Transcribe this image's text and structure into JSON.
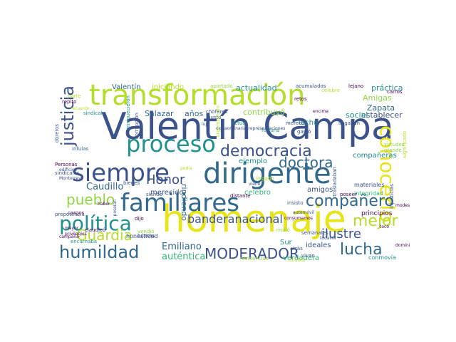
{
  "palette": {
    "dark_purple": "#440154",
    "indigo": "#3b528b",
    "blue_slate": "#31688e",
    "teal": "#21918c",
    "green_teal": "#35b779",
    "lime": "#90d743",
    "yellow_green": "#b5de2b",
    "yellow": "#e8e41a"
  },
  "words": [
    {
      "text": "Valentín Campa",
      "color": "#3b528b"
    },
    {
      "text": "homenaje",
      "color": "#e8e41a"
    },
    {
      "text": "transformación",
      "color": "#b5de2b"
    },
    {
      "text": "siempre",
      "color": "#3b528b"
    },
    {
      "text": "dirigente",
      "color": "#31688e"
    },
    {
      "text": "familiares",
      "color": "#31688e"
    },
    {
      "text": "proceso",
      "color": "#21918c"
    },
    {
      "text": "democracia",
      "color": "#3b528b"
    },
    {
      "text": "política",
      "color": "#21918c"
    },
    {
      "text": "conocerlo",
      "color": "#e8e41a"
    },
    {
      "text": "compañero",
      "color": "#31688e"
    },
    {
      "text": "justicia",
      "color": "#3b528b"
    },
    {
      "text": "humildad",
      "color": "#31688e"
    },
    {
      "text": "lucha",
      "color": "#31688e"
    },
    {
      "text": "MODERADOR",
      "color": "#3b528b"
    },
    {
      "text": "Guardia",
      "color": "#b5de2b"
    },
    {
      "text": "pueblo",
      "color": "#90d743"
    },
    {
      "text": "mejor",
      "color": "#b5de2b"
    },
    {
      "text": "doctora",
      "color": "#31688e"
    },
    {
      "text": "Honor",
      "color": "#3b528b"
    },
    {
      "text": "banderanacional",
      "color": "#3b528b"
    },
    {
      "text": "ilustre",
      "color": "#3b528b"
    },
    {
      "text": "Caudillo",
      "color": "#31688e"
    },
    {
      "text": "Emiliano",
      "color": "#31688e"
    },
    {
      "text": "auténtica",
      "color": "#35b779"
    },
    {
      "text": "Valentín",
      "color": "#31688e"
    },
    {
      "text": "iniciando",
      "color": "#b5de2b"
    },
    {
      "text": "actualidad",
      "color": "#21918c"
    },
    {
      "text": "práctica",
      "color": "#21918c"
    },
    {
      "text": "Amigas",
      "color": "#90d743"
    },
    {
      "text": "Zapata",
      "color": "#31688e"
    },
    {
      "text": "establecer",
      "color": "#3b528b"
    },
    {
      "text": "social",
      "color": "#21918c"
    },
    {
      "text": "Salazar",
      "color": "#31688e"
    },
    {
      "text": "años",
      "color": "#31688e"
    },
    {
      "text": "contribuyó",
      "color": "#90d743"
    },
    {
      "text": "lucho",
      "color": "#21918c"
    },
    {
      "text": "compañeras",
      "color": "#21918c"
    },
    {
      "text": "ejemplo",
      "color": "#21918c"
    },
    {
      "text": "rindiendo",
      "color": "#31688e"
    },
    {
      "text": "merecido",
      "color": "#3b528b"
    },
    {
      "text": "amigos",
      "color": "#3b528b"
    },
    {
      "text": "celebro",
      "color": "#35b779"
    },
    {
      "text": "verdadera",
      "color": "#35b779"
    },
    {
      "text": "ideales",
      "color": "#3b528b"
    },
    {
      "text": "Sur",
      "color": "#21918c"
    },
    {
      "text": "honestidad",
      "color": "#3b528b"
    },
    {
      "text": "principios",
      "color": "#440154"
    },
    {
      "text": "materiales",
      "color": "#3b528b"
    },
    {
      "text": "integridad",
      "color": "#35b779"
    },
    {
      "text": "conmovía",
      "color": "#21918c"
    },
    {
      "text": "obreros",
      "color": "#3b528b"
    },
    {
      "text": "infulas",
      "color": "#31688e"
    },
    {
      "text": "bienes",
      "color": "#3b528b"
    },
    {
      "text": "cargos",
      "color": "#440154"
    },
    {
      "text": "claudicó",
      "color": "#440154"
    },
    {
      "text": "encarnaba",
      "color": "#21918c"
    },
    {
      "text": "vendió",
      "color": "#90d743"
    },
    {
      "text": "rindió",
      "color": "#90d743"
    },
    {
      "text": "distante",
      "color": "#440154"
    },
    {
      "text": "siendo",
      "color": "#3b528b"
    },
    {
      "text": "insisto",
      "color": "#3b528b"
    },
    {
      "text": "atrás",
      "color": "#3b528b"
    },
    {
      "text": "vivan",
      "color": "#3b528b"
    },
    {
      "text": "acumulados",
      "color": "#3b528b"
    },
    {
      "text": "retos",
      "color": "#440154"
    },
    {
      "text": "lejano",
      "color": "#440154"
    },
    {
      "text": "apartado",
      "color": "#90d743"
    },
    {
      "text": "celebre",
      "color": "#b5de2b"
    },
    {
      "text": "carros",
      "color": "#440154"
    },
    {
      "text": "choferes",
      "color": "#3b528b"
    },
    {
      "text": "gusto",
      "color": "#3b528b"
    },
    {
      "text": "actuó",
      "color": "#21918c"
    },
    {
      "text": "fortuna",
      "color": "#21918c"
    },
    {
      "text": "gastó",
      "color": "#3b528b"
    },
    {
      "text": "merece",
      "color": "#3b528b"
    },
    {
      "text": "llegaban",
      "color": "#3b528b"
    },
    {
      "text": "extraordinariasrepresentaciones",
      "color": "#3b528b"
    },
    {
      "text": "organización",
      "color": "#b5de2b"
    },
    {
      "text": "corrupción",
      "color": "#3b528b"
    },
    {
      "text": "enriquecieron",
      "color": "#21918c"
    },
    {
      "text": "sindical",
      "color": "#21918c"
    },
    {
      "text": "Personas",
      "color": "#440154"
    },
    {
      "text": "sindicales",
      "color": "#3b528b"
    },
    {
      "text": "prepotencia",
      "color": "#3b528b"
    },
    {
      "text": "mayor",
      "color": "#440154"
    },
    {
      "text": "privilegios",
      "color": "#440154"
    },
    {
      "text": "campaña",
      "color": "#440154"
    },
    {
      "text": "semanales",
      "color": "#3b528b"
    },
    {
      "text": "consumamos",
      "color": "#440154"
    },
    {
      "text": "automóvil",
      "color": "#3b528b"
    },
    {
      "text": "acabar",
      "color": "#b5de2b"
    },
    {
      "text": "residencias",
      "color": "#90d743"
    },
    {
      "text": "todavía",
      "color": "#3b528b"
    },
    {
      "text": "tocó",
      "color": "#440154"
    },
    {
      "text": "injusticias",
      "color": "#3b528b"
    },
    {
      "text": "virtudes",
      "color": "#90d743"
    },
    {
      "text": "grande",
      "color": "#90d743"
    },
    {
      "text": "significado",
      "color": "#b5de2b"
    },
    {
      "text": "encima",
      "color": "#440154"
    },
    {
      "text": "parte",
      "color": "#b5de2b"
    },
    {
      "text": "repito",
      "color": "#440154"
    },
    {
      "text": "recuerdo",
      "color": "#b5de2b"
    },
    {
      "text": "poseían",
      "color": "#3b528b"
    },
    {
      "text": "poseer",
      "color": "#440154"
    },
    {
      "text": "lujosas",
      "color": "#3b528b"
    },
    {
      "text": "dijo",
      "color": "#440154"
    },
    {
      "text": "trasladaban",
      "color": "#3b528b"
    },
    {
      "text": "Monterrey",
      "color": "#3b528b"
    },
    {
      "text": "edificios",
      "color": "#3b528b"
    },
    {
      "text": "podía",
      "color": "#b5de2b"
    },
    {
      "text": "llegado",
      "color": "#b5de2b"
    },
    {
      "text": "viene",
      "color": "#3b528b"
    },
    {
      "text": "lujo",
      "color": "#3b528b"
    },
    {
      "text": "modesta",
      "color": "#440154"
    },
    {
      "text": "dominio",
      "color": "#440154"
    },
    {
      "text": "haber",
      "color": "#440154"
    }
  ]
}
